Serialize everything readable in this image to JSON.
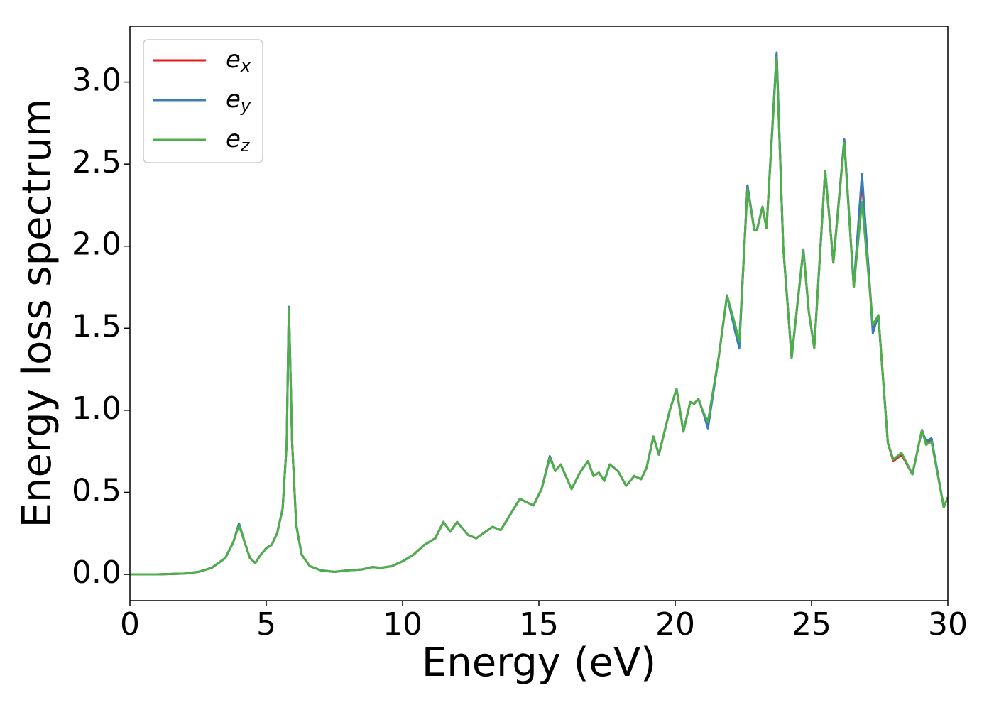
{
  "chart_data": {
    "type": "line",
    "xlabel": "Energy (eV)",
    "ylabel": "Energy loss spectrum",
    "xlim": [
      0,
      30
    ],
    "ylim": [
      -0.16,
      3.34
    ],
    "xticks": [
      0,
      5,
      10,
      15,
      20,
      25,
      30
    ],
    "yticks": [
      {
        "value": 0,
        "label": "0.0"
      },
      0.5,
      {
        "value": 1,
        "label": "1.0"
      },
      1.5,
      {
        "value": 2,
        "label": "2.0"
      },
      2.5,
      {
        "value": 3,
        "label": "3.0"
      }
    ],
    "legend": "upper left",
    "grid": false,
    "x": [
      0,
      1,
      2,
      2.5,
      3,
      3.5,
      3.8,
      4.0,
      4.2,
      4.4,
      4.6,
      4.8,
      5.0,
      5.2,
      5.4,
      5.6,
      5.75,
      5.83,
      5.95,
      6.1,
      6.3,
      6.6,
      7.0,
      7.5,
      8.0,
      8.5,
      8.9,
      9.2,
      9.6,
      10.0,
      10.4,
      10.8,
      11.2,
      11.5,
      11.75,
      12.0,
      12.4,
      12.7,
      13.3,
      13.6,
      14.3,
      14.8,
      15.1,
      15.4,
      15.6,
      15.8,
      16.2,
      16.5,
      16.8,
      17.0,
      17.2,
      17.4,
      17.6,
      17.9,
      18.2,
      18.5,
      18.75,
      18.95,
      19.2,
      19.4,
      19.8,
      20.05,
      20.3,
      20.55,
      20.7,
      20.85,
      21.0,
      21.2,
      21.6,
      21.9,
      22.2,
      22.35,
      22.65,
      22.9,
      23.0,
      23.2,
      23.35,
      23.72,
      23.96,
      24.27,
      24.7,
      24.9,
      25.1,
      25.5,
      25.8,
      26.2,
      26.55,
      26.85,
      27.25,
      27.45,
      27.8,
      28.0,
      28.3,
      28.7,
      29.05,
      29.2,
      29.4,
      29.85,
      30
    ],
    "series": [
      {
        "name": "ex",
        "color": "#e41a1c",
        "values": [
          0,
          0,
          0.005,
          0.015,
          0.04,
          0.1,
          0.2,
          0.31,
          0.2,
          0.1,
          0.07,
          0.12,
          0.16,
          0.18,
          0.25,
          0.4,
          0.8,
          1.63,
          0.8,
          0.3,
          0.12,
          0.05,
          0.025,
          0.015,
          0.025,
          0.03,
          0.045,
          0.04,
          0.05,
          0.08,
          0.12,
          0.18,
          0.22,
          0.32,
          0.26,
          0.32,
          0.24,
          0.22,
          0.29,
          0.27,
          0.46,
          0.42,
          0.52,
          0.72,
          0.63,
          0.67,
          0.52,
          0.62,
          0.69,
          0.6,
          0.62,
          0.57,
          0.67,
          0.63,
          0.54,
          0.6,
          0.58,
          0.65,
          0.84,
          0.73,
          1.0,
          1.13,
          0.87,
          1.05,
          1.04,
          1.07,
          1.0,
          0.92,
          1.33,
          1.7,
          1.5,
          1.4,
          2.37,
          2.1,
          2.1,
          2.24,
          2.11,
          3.17,
          2.0,
          1.32,
          1.98,
          1.6,
          1.38,
          2.46,
          1.9,
          2.65,
          1.75,
          2.4,
          1.5,
          1.58,
          0.8,
          0.69,
          0.73,
          0.61,
          0.88,
          0.8,
          0.82,
          0.41,
          0.47
        ]
      },
      {
        "name": "ey",
        "color": "#377eb8",
        "values": [
          0,
          0,
          0.005,
          0.015,
          0.04,
          0.1,
          0.2,
          0.31,
          0.2,
          0.1,
          0.07,
          0.12,
          0.16,
          0.18,
          0.25,
          0.4,
          0.8,
          1.63,
          0.8,
          0.3,
          0.12,
          0.05,
          0.025,
          0.015,
          0.025,
          0.03,
          0.045,
          0.04,
          0.05,
          0.08,
          0.12,
          0.18,
          0.22,
          0.32,
          0.26,
          0.32,
          0.24,
          0.22,
          0.29,
          0.27,
          0.46,
          0.42,
          0.52,
          0.72,
          0.63,
          0.67,
          0.52,
          0.62,
          0.69,
          0.6,
          0.62,
          0.57,
          0.67,
          0.63,
          0.54,
          0.6,
          0.58,
          0.65,
          0.84,
          0.73,
          1.0,
          1.13,
          0.87,
          1.05,
          1.04,
          1.07,
          1.0,
          0.89,
          1.33,
          1.7,
          1.48,
          1.38,
          2.37,
          2.1,
          2.1,
          2.24,
          2.11,
          3.18,
          2.0,
          1.32,
          1.98,
          1.6,
          1.38,
          2.46,
          1.9,
          2.65,
          1.75,
          2.44,
          1.47,
          1.58,
          0.8,
          0.7,
          0.74,
          0.61,
          0.88,
          0.81,
          0.83,
          0.41,
          0.47
        ]
      },
      {
        "name": "ez",
        "color": "#4daf4a",
        "values": [
          0,
          0,
          0.005,
          0.015,
          0.04,
          0.1,
          0.2,
          0.3,
          0.2,
          0.1,
          0.07,
          0.12,
          0.16,
          0.18,
          0.25,
          0.4,
          0.8,
          1.62,
          0.8,
          0.3,
          0.12,
          0.05,
          0.025,
          0.015,
          0.025,
          0.03,
          0.045,
          0.04,
          0.05,
          0.08,
          0.12,
          0.18,
          0.22,
          0.32,
          0.26,
          0.32,
          0.24,
          0.22,
          0.29,
          0.27,
          0.46,
          0.42,
          0.52,
          0.71,
          0.63,
          0.67,
          0.52,
          0.62,
          0.69,
          0.6,
          0.62,
          0.57,
          0.67,
          0.63,
          0.54,
          0.6,
          0.58,
          0.65,
          0.84,
          0.73,
          1.0,
          1.13,
          0.87,
          1.05,
          1.04,
          1.07,
          1.0,
          0.93,
          1.33,
          1.7,
          1.52,
          1.42,
          2.35,
          2.1,
          2.1,
          2.24,
          2.11,
          3.15,
          2.0,
          1.32,
          1.98,
          1.6,
          1.38,
          2.46,
          1.9,
          2.63,
          1.75,
          2.27,
          1.52,
          1.58,
          0.8,
          0.7,
          0.74,
          0.61,
          0.88,
          0.79,
          0.81,
          0.41,
          0.47
        ]
      }
    ]
  }
}
